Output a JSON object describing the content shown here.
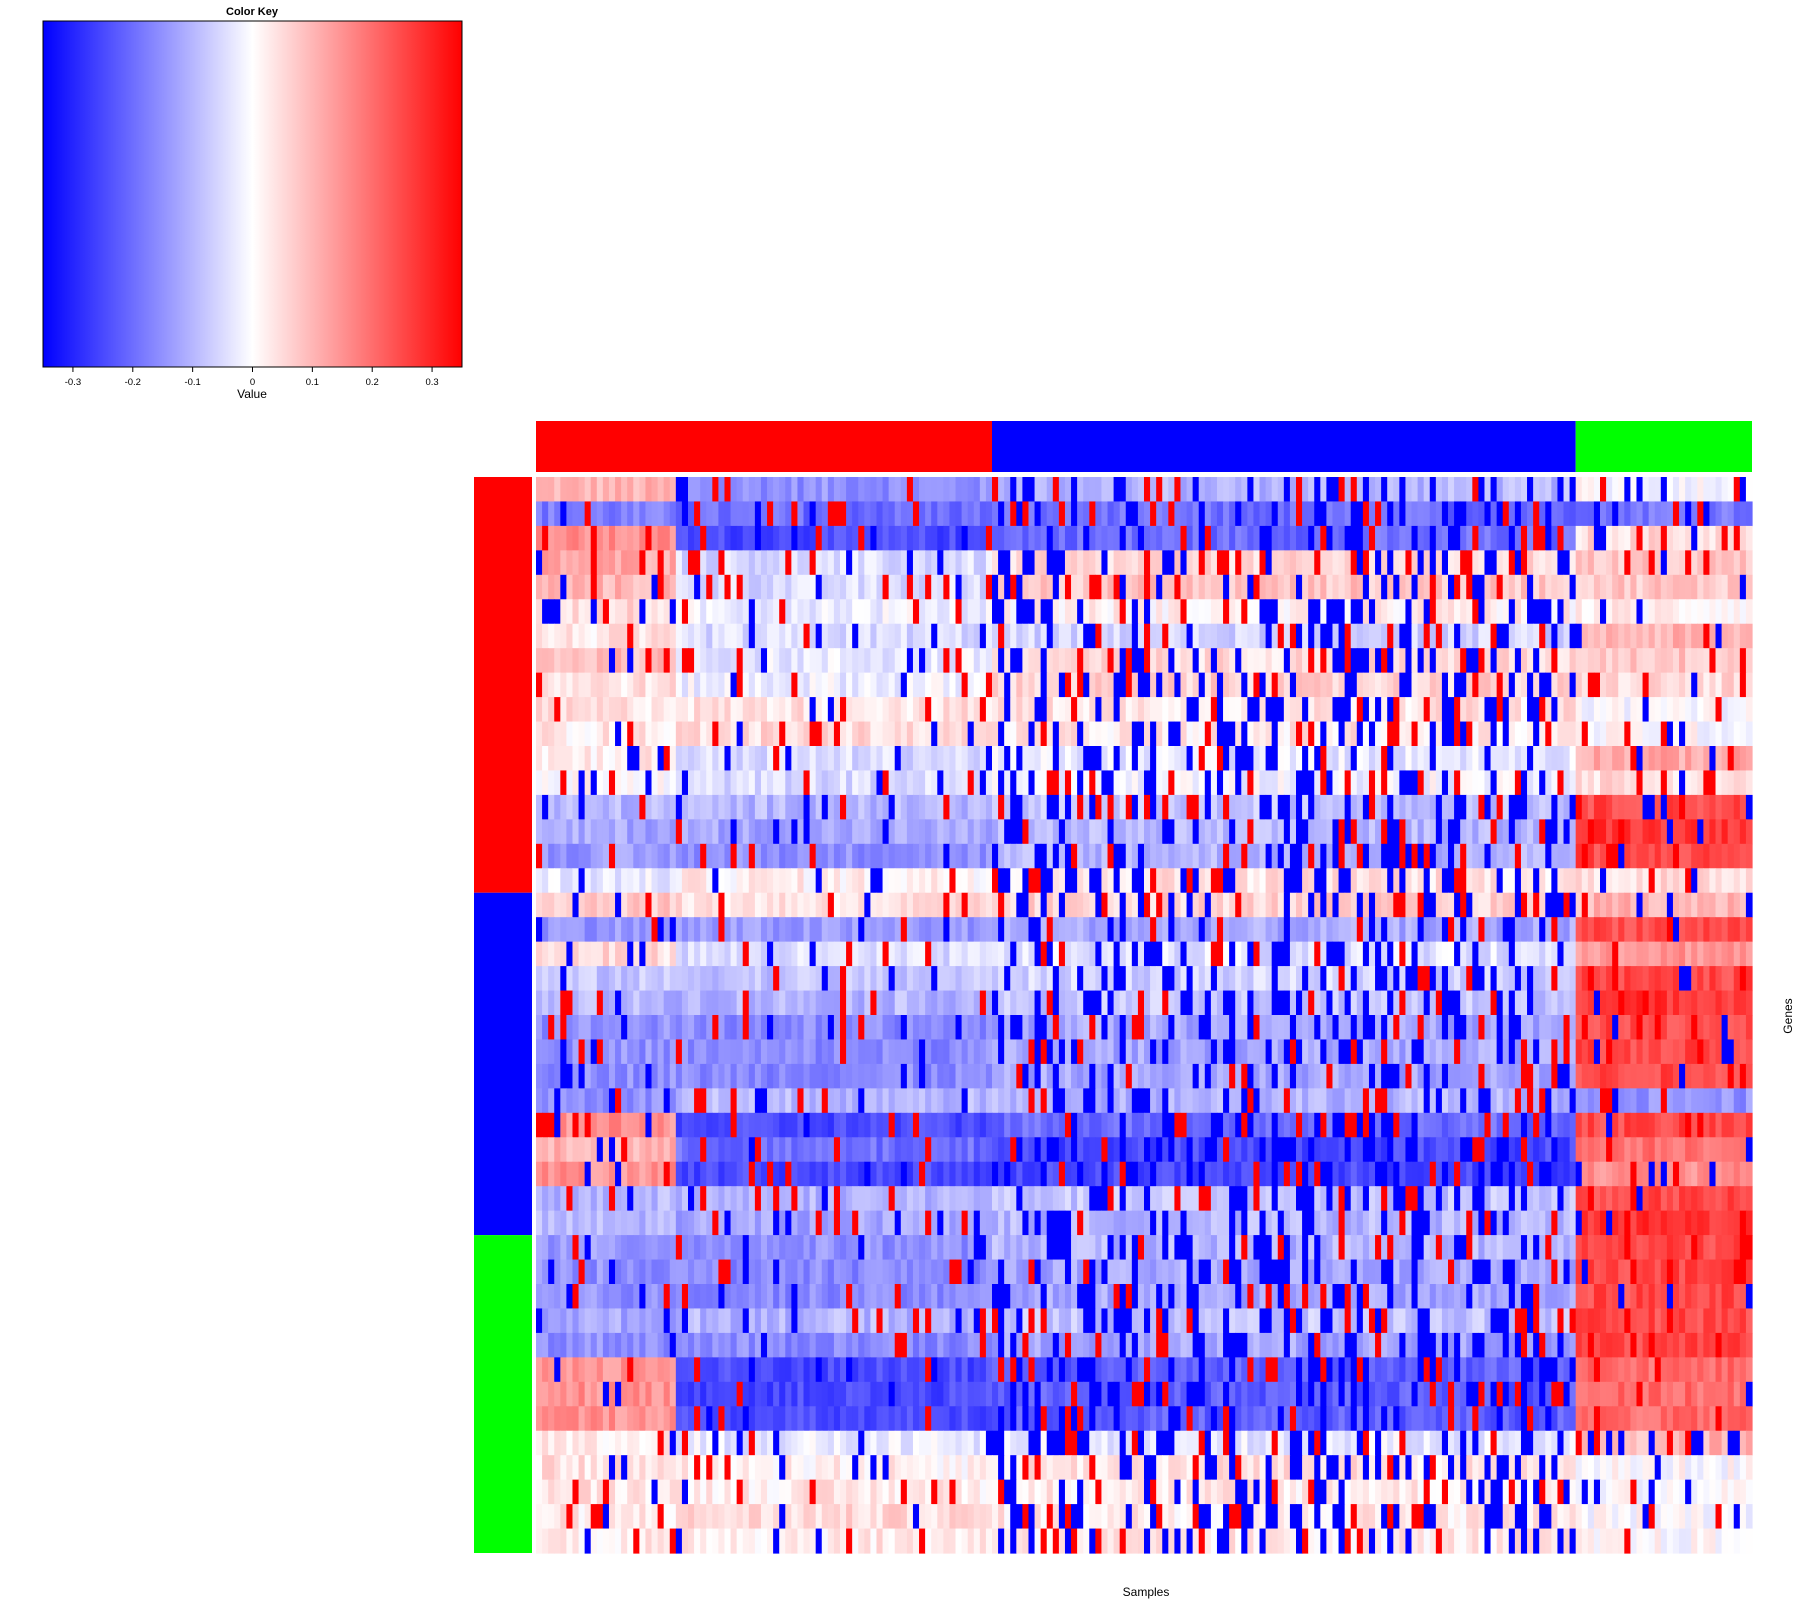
{
  "chart_data": {
    "type": "heatmap",
    "title": "",
    "xlabel": "Samples",
    "ylabel": "Genes",
    "color_key": {
      "title": "Color Key",
      "xlabel": "Value",
      "range": [
        -0.35,
        0.35
      ],
      "ticks": [
        -0.3,
        -0.2,
        -0.1,
        0,
        0.1,
        0.2,
        0.3
      ],
      "tick_labels": [
        "-0.3",
        "-0.2",
        "-0.1",
        "0",
        "0.1",
        "0.2",
        "0.3"
      ],
      "low_color": "#0000ff",
      "mid_color": "#ffffff",
      "high_color": "#ff0000"
    },
    "column_groups": [
      {
        "color": "#ff0000",
        "count": 75
      },
      {
        "color": "#0000ff",
        "count": 96
      },
      {
        "color": "#00ff00",
        "count": 29
      }
    ],
    "row_groups": [
      {
        "color": "#ff0000",
        "count": 17
      },
      {
        "color": "#0000ff",
        "count": 14
      },
      {
        "color": "#00ff00",
        "count": 13
      }
    ],
    "row_profiles": [
      [
        0.1,
        -0.15,
        -0.1,
        0.0
      ],
      [
        -0.18,
        -0.2,
        -0.2,
        -0.18
      ],
      [
        0.15,
        -0.25,
        -0.2,
        0.05
      ],
      [
        0.12,
        -0.05,
        0.05,
        0.08
      ],
      [
        0.1,
        -0.05,
        0.08,
        0.08
      ],
      [
        0.05,
        -0.02,
        0.02,
        0.02
      ],
      [
        0.03,
        -0.05,
        -0.06,
        0.1
      ],
      [
        0.09,
        -0.03,
        0.05,
        0.08
      ],
      [
        0.04,
        -0.02,
        0.06,
        0.05
      ],
      [
        0.04,
        0.04,
        0.04,
        0.0
      ],
      [
        0.03,
        0.05,
        0.03,
        0.0
      ],
      [
        0.03,
        -0.05,
        -0.03,
        0.12
      ],
      [
        0.0,
        -0.05,
        -0.01,
        0.05
      ],
      [
        -0.1,
        -0.1,
        -0.08,
        0.25
      ],
      [
        -0.12,
        -0.12,
        -0.1,
        0.28
      ],
      [
        -0.14,
        -0.15,
        -0.1,
        0.25
      ],
      [
        -0.03,
        0.02,
        0.04,
        0.05
      ],
      [
        0.08,
        0.04,
        0.06,
        0.1
      ],
      [
        -0.14,
        -0.14,
        -0.12,
        0.25
      ],
      [
        0.05,
        -0.05,
        -0.04,
        0.15
      ],
      [
        -0.08,
        -0.08,
        -0.06,
        0.25
      ],
      [
        -0.1,
        -0.1,
        -0.08,
        0.28
      ],
      [
        -0.15,
        -0.16,
        -0.12,
        0.25
      ],
      [
        -0.15,
        -0.16,
        -0.12,
        0.25
      ],
      [
        -0.15,
        -0.16,
        -0.12,
        0.25
      ],
      [
        -0.15,
        -0.1,
        -0.1,
        -0.15
      ],
      [
        0.15,
        -0.25,
        -0.2,
        0.25
      ],
      [
        0.1,
        -0.2,
        -0.25,
        0.2
      ],
      [
        0.15,
        -0.25,
        -0.25,
        0.15
      ],
      [
        -0.1,
        -0.1,
        -0.08,
        0.25
      ],
      [
        -0.1,
        -0.12,
        -0.1,
        0.28
      ],
      [
        -0.14,
        -0.15,
        -0.1,
        0.25
      ],
      [
        -0.15,
        -0.16,
        -0.12,
        0.25
      ],
      [
        -0.15,
        -0.16,
        -0.12,
        0.25
      ],
      [
        -0.12,
        -0.1,
        -0.08,
        0.25
      ],
      [
        -0.15,
        -0.16,
        -0.12,
        0.25
      ],
      [
        0.15,
        -0.25,
        -0.22,
        0.2
      ],
      [
        0.15,
        -0.25,
        -0.22,
        0.2
      ],
      [
        0.15,
        -0.25,
        -0.22,
        0.2
      ],
      [
        0.02,
        -0.03,
        -0.03,
        0.1
      ],
      [
        0.04,
        0.02,
        0.04,
        0.0
      ],
      [
        0.04,
        0.03,
        0.03,
        0.0
      ],
      [
        0.03,
        0.05,
        0.03,
        0.0
      ],
      [
        0.03,
        0.03,
        0.03,
        0.0
      ]
    ]
  }
}
